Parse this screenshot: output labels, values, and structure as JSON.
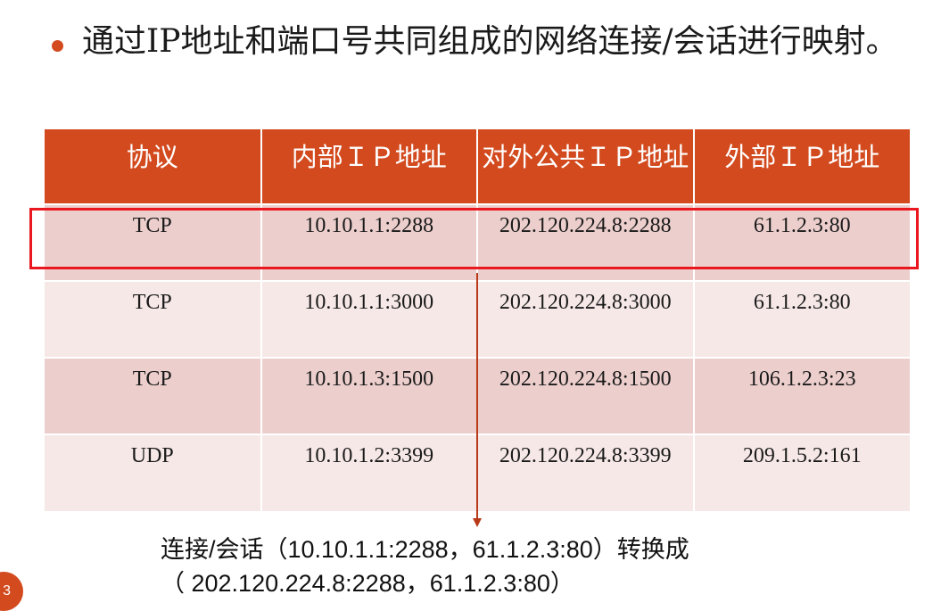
{
  "bullet": {
    "text": "通过IP地址和端口号共同组成的网络连接/会话进行映射。"
  },
  "table": {
    "headers": [
      "协议",
      "内部ＩＰ地址",
      "对外公共ＩＰ地址",
      "外部ＩＰ地址"
    ],
    "rows": [
      [
        "TCP",
        "10.10.1.1:2288",
        "202.120.224.8:2288",
        "61.1.2.3:80"
      ],
      [
        "TCP",
        "10.10.1.1:3000",
        "202.120.224.8:3000",
        "61.1.2.3:80"
      ],
      [
        "TCP",
        "10.10.1.3:1500",
        "202.120.224.8:1500",
        "106.1.2.3:23"
      ],
      [
        "UDP",
        "10.10.1.2:3399",
        "202.120.224.8:3399",
        "209.1.5.2:161"
      ]
    ]
  },
  "caption": {
    "line1": "连接/会话（10.10.1.1:2288，61.1.2.3:80）转换成",
    "line2": "（ 202.120.224.8:2288，61.1.2.3:80）"
  },
  "slide_number": "3",
  "colors": {
    "accent": "#d24a1e",
    "row_dark": "#eccfcd",
    "row_light": "#f6e8e7",
    "highlight": "#e8181e"
  }
}
